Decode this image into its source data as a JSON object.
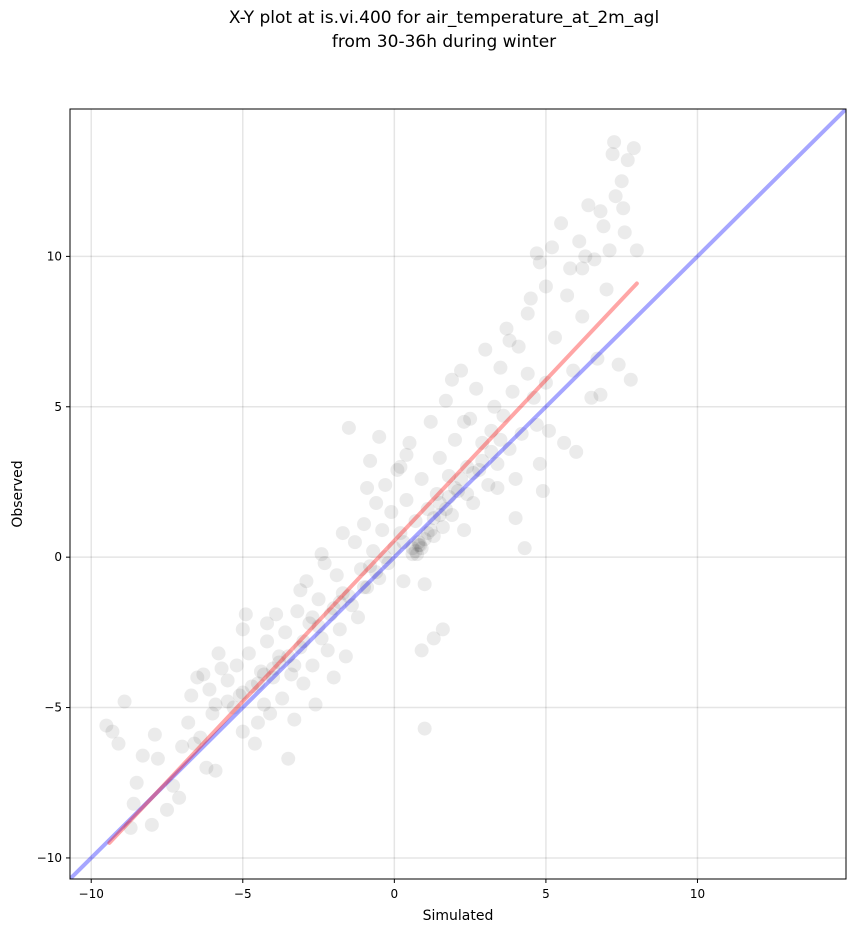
{
  "chart_data": {
    "type": "scatter",
    "title": "X-Y plot at is.vi.400 for air_temperature_at_2m_agl",
    "subtitle": "from 30-36h during winter",
    "xlabel": "Simulated",
    "ylabel": "Observed",
    "xlim": [
      -10.7,
      14.9
    ],
    "ylim": [
      -10.7,
      14.9
    ],
    "x_ticks": [
      -10,
      -5,
      0,
      5,
      10
    ],
    "y_ticks": [
      -10,
      -5,
      0,
      5,
      10
    ],
    "x_tick_labels": [
      "−10",
      "−5",
      "0",
      "5",
      "10"
    ],
    "y_tick_labels": [
      "−10",
      "−5",
      "0",
      "5",
      "10"
    ],
    "grid": true,
    "point_color": "#000000",
    "point_alpha": 0.08,
    "fit_line": {
      "color": "#ff0000",
      "alpha": 0.35,
      "x": [
        -9.4,
        8.0
      ],
      "y": [
        -9.5,
        9.1
      ]
    },
    "identity_line": {
      "color": "#0000ff",
      "alpha": 0.35,
      "x": [
        -10.7,
        14.9
      ],
      "y": [
        -10.7,
        14.9
      ]
    },
    "points": [
      {
        "x": -9.5,
        "y": -5.6
      },
      {
        "x": -9.3,
        "y": -5.8
      },
      {
        "x": -9.1,
        "y": -6.2
      },
      {
        "x": -8.9,
        "y": -4.8
      },
      {
        "x": -8.7,
        "y": -9.0
      },
      {
        "x": -8.6,
        "y": -8.2
      },
      {
        "x": -8.5,
        "y": -7.5
      },
      {
        "x": -8.3,
        "y": -6.6
      },
      {
        "x": -8.0,
        "y": -8.9
      },
      {
        "x": -7.9,
        "y": -5.9
      },
      {
        "x": -7.8,
        "y": -6.7
      },
      {
        "x": -7.5,
        "y": -8.4
      },
      {
        "x": -7.3,
        "y": -7.6
      },
      {
        "x": -7.0,
        "y": -6.3
      },
      {
        "x": -7.1,
        "y": -8.0
      },
      {
        "x": -6.8,
        "y": -5.5
      },
      {
        "x": -6.7,
        "y": -4.6
      },
      {
        "x": -6.6,
        "y": -6.2
      },
      {
        "x": -6.4,
        "y": -6.0
      },
      {
        "x": -6.2,
        "y": -7.0
      },
      {
        "x": -6.0,
        "y": -5.2
      },
      {
        "x": -5.9,
        "y": -7.1
      },
      {
        "x": -6.3,
        "y": -3.9
      },
      {
        "x": -6.1,
        "y": -4.4
      },
      {
        "x": -5.9,
        "y": -4.9
      },
      {
        "x": -5.7,
        "y": -3.7
      },
      {
        "x": -5.5,
        "y": -4.1
      },
      {
        "x": -5.3,
        "y": -5.0
      },
      {
        "x": -5.2,
        "y": -3.6
      },
      {
        "x": -5.1,
        "y": -4.6
      },
      {
        "x": -5.0,
        "y": -2.4
      },
      {
        "x": -5.0,
        "y": -5.8
      },
      {
        "x": -4.9,
        "y": -1.9
      },
      {
        "x": -4.8,
        "y": -3.2
      },
      {
        "x": -4.7,
        "y": -4.3
      },
      {
        "x": -4.6,
        "y": -6.2
      },
      {
        "x": -4.5,
        "y": -5.5
      },
      {
        "x": -4.4,
        "y": -3.8
      },
      {
        "x": -4.3,
        "y": -4.9
      },
      {
        "x": -4.2,
        "y": -2.8
      },
      {
        "x": -4.1,
        "y": -5.2
      },
      {
        "x": -4.0,
        "y": -4.0
      },
      {
        "x": -3.9,
        "y": -1.9
      },
      {
        "x": -3.8,
        "y": -3.3
      },
      {
        "x": -3.7,
        "y": -4.7
      },
      {
        "x": -3.6,
        "y": -2.5
      },
      {
        "x": -3.5,
        "y": -6.7
      },
      {
        "x": -3.4,
        "y": -3.9
      },
      {
        "x": -3.3,
        "y": -5.4
      },
      {
        "x": -3.2,
        "y": -1.8
      },
      {
        "x": -3.1,
        "y": -3.0
      },
      {
        "x": -3.0,
        "y": -4.2
      },
      {
        "x": -2.9,
        "y": -0.8
      },
      {
        "x": -2.8,
        "y": -2.2
      },
      {
        "x": -2.7,
        "y": -3.6
      },
      {
        "x": -2.6,
        "y": -4.9
      },
      {
        "x": -2.5,
        "y": -1.4
      },
      {
        "x": -2.4,
        "y": -2.7
      },
      {
        "x": -2.3,
        "y": -0.2
      },
      {
        "x": -2.2,
        "y": -3.1
      },
      {
        "x": -2.1,
        "y": -1.9
      },
      {
        "x": -2.0,
        "y": -4.0
      },
      {
        "x": -1.9,
        "y": -0.6
      },
      {
        "x": -1.8,
        "y": -2.4
      },
      {
        "x": -1.7,
        "y": -1.2
      },
      {
        "x": -1.6,
        "y": -3.3
      },
      {
        "x": -1.5,
        "y": 4.3
      },
      {
        "x": -1.4,
        "y": -1.6
      },
      {
        "x": -1.3,
        "y": 0.5
      },
      {
        "x": -1.2,
        "y": -2.0
      },
      {
        "x": -1.1,
        "y": -0.4
      },
      {
        "x": -1.0,
        "y": 1.1
      },
      {
        "x": -0.9,
        "y": -1.0
      },
      {
        "x": -0.8,
        "y": 3.2
      },
      {
        "x": -0.7,
        "y": 0.2
      },
      {
        "x": -0.6,
        "y": 1.8
      },
      {
        "x": -0.5,
        "y": -0.7
      },
      {
        "x": -0.4,
        "y": 0.9
      },
      {
        "x": -0.3,
        "y": 2.4
      },
      {
        "x": -0.2,
        "y": -0.2
      },
      {
        "x": -0.1,
        "y": 1.5
      },
      {
        "x": 0.0,
        "y": 0.3
      },
      {
        "x": 0.1,
        "y": 2.9
      },
      {
        "x": 0.2,
        "y": 0.8
      },
      {
        "x": 0.3,
        "y": -0.8
      },
      {
        "x": 0.4,
        "y": 1.9
      },
      {
        "x": 0.5,
        "y": 3.8
      },
      {
        "x": 0.6,
        "y": 0.1
      },
      {
        "x": 0.7,
        "y": 1.2
      },
      {
        "x": 0.8,
        "y": 0.4
      },
      {
        "x": 0.9,
        "y": 2.6
      },
      {
        "x": 1.0,
        "y": -0.9
      },
      {
        "x": 1.1,
        "y": 1.6
      },
      {
        "x": 1.2,
        "y": 4.5
      },
      {
        "x": 1.3,
        "y": 0.7
      },
      {
        "x": 1.4,
        "y": 2.1
      },
      {
        "x": 1.5,
        "y": 3.3
      },
      {
        "x": 1.6,
        "y": 1.0
      },
      {
        "x": 1.7,
        "y": 5.2
      },
      {
        "x": 1.8,
        "y": 2.7
      },
      {
        "x": 1.9,
        "y": 1.4
      },
      {
        "x": 2.0,
        "y": 3.9
      },
      {
        "x": 2.1,
        "y": 2.2
      },
      {
        "x": 2.2,
        "y": 6.2
      },
      {
        "x": 2.3,
        "y": 0.9
      },
      {
        "x": 2.4,
        "y": 3.0
      },
      {
        "x": 2.5,
        "y": 4.6
      },
      {
        "x": 2.6,
        "y": 1.8
      },
      {
        "x": 2.7,
        "y": 5.6
      },
      {
        "x": 2.8,
        "y": 2.9
      },
      {
        "x": 2.9,
        "y": 3.8
      },
      {
        "x": 3.0,
        "y": 6.9
      },
      {
        "x": 3.1,
        "y": 2.4
      },
      {
        "x": 3.2,
        "y": 4.2
      },
      {
        "x": 3.3,
        "y": 5.0
      },
      {
        "x": 3.4,
        "y": 3.1
      },
      {
        "x": 3.5,
        "y": 6.3
      },
      {
        "x": 3.6,
        "y": 4.7
      },
      {
        "x": 3.7,
        "y": 7.6
      },
      {
        "x": 3.8,
        "y": 3.6
      },
      {
        "x": 3.9,
        "y": 5.5
      },
      {
        "x": 4.0,
        "y": 2.6
      },
      {
        "x": 4.1,
        "y": 7.0
      },
      {
        "x": 4.2,
        "y": 4.1
      },
      {
        "x": 4.3,
        "y": 0.3
      },
      {
        "x": 4.4,
        "y": 6.1
      },
      {
        "x": 4.5,
        "y": 8.6
      },
      {
        "x": 4.6,
        "y": 5.3
      },
      {
        "x": 4.7,
        "y": 10.1
      },
      {
        "x": 4.8,
        "y": 3.1
      },
      {
        "x": 4.9,
        "y": 2.2
      },
      {
        "x": 5.0,
        "y": 9.0
      },
      {
        "x": 5.1,
        "y": 4.2
      },
      {
        "x": 5.3,
        "y": 7.3
      },
      {
        "x": 5.5,
        "y": 11.1
      },
      {
        "x": 5.6,
        "y": 3.8
      },
      {
        "x": 5.8,
        "y": 9.6
      },
      {
        "x": 5.9,
        "y": 6.2
      },
      {
        "x": 6.0,
        "y": 3.5
      },
      {
        "x": 6.1,
        "y": 10.5
      },
      {
        "x": 6.2,
        "y": 8.0
      },
      {
        "x": 6.4,
        "y": 11.7
      },
      {
        "x": 6.5,
        "y": 5.3
      },
      {
        "x": 6.6,
        "y": 9.9
      },
      {
        "x": 6.7,
        "y": 6.6
      },
      {
        "x": 6.8,
        "y": 5.4
      },
      {
        "x": 6.9,
        "y": 11.0
      },
      {
        "x": 7.0,
        "y": 8.9
      },
      {
        "x": 7.1,
        "y": 10.2
      },
      {
        "x": 7.2,
        "y": 13.4
      },
      {
        "x": 7.3,
        "y": 12.0
      },
      {
        "x": 7.4,
        "y": 6.4
      },
      {
        "x": 7.5,
        "y": 12.5
      },
      {
        "x": 7.6,
        "y": 10.8
      },
      {
        "x": 7.7,
        "y": 13.2
      },
      {
        "x": 7.8,
        "y": 5.9
      },
      {
        "x": 7.9,
        "y": 13.6
      },
      {
        "x": 8.0,
        "y": 10.2
      },
      {
        "x": 7.25,
        "y": 13.8
      },
      {
        "x": 7.55,
        "y": 11.6
      },
      {
        "x": 0.7,
        "y": 0.2
      },
      {
        "x": 0.8,
        "y": 0.5
      },
      {
        "x": 0.9,
        "y": 0.3
      },
      {
        "x": 0.75,
        "y": 0.1
      },
      {
        "x": 0.85,
        "y": 0.4
      },
      {
        "x": 1.0,
        "y": 0.6
      },
      {
        "x": 0.6,
        "y": 0.3
      },
      {
        "x": 1.1,
        "y": 0.8
      },
      {
        "x": 1.3,
        "y": 1.3
      },
      {
        "x": 1.5,
        "y": 1.8
      },
      {
        "x": 1.8,
        "y": 2.0
      },
      {
        "x": 2.0,
        "y": 2.3
      },
      {
        "x": 2.2,
        "y": 2.6
      },
      {
        "x": 1.2,
        "y": 0.9
      },
      {
        "x": 1.7,
        "y": 1.6
      },
      {
        "x": 2.4,
        "y": 2.1
      },
      {
        "x": -0.3,
        "y": 0.0
      },
      {
        "x": -0.6,
        "y": -0.5
      },
      {
        "x": -1.0,
        "y": -1.0
      },
      {
        "x": -1.5,
        "y": -1.3
      },
      {
        "x": -2.0,
        "y": -1.7
      },
      {
        "x": -2.5,
        "y": -2.3
      },
      {
        "x": -3.0,
        "y": -2.8
      },
      {
        "x": -3.5,
        "y": -3.3
      },
      {
        "x": -4.0,
        "y": -3.7
      },
      {
        "x": -4.5,
        "y": -4.2
      },
      {
        "x": -5.0,
        "y": -4.5
      },
      {
        "x": -5.5,
        "y": -4.8
      },
      {
        "x": -2.7,
        "y": -2.0
      },
      {
        "x": -3.3,
        "y": -3.6
      },
      {
        "x": -1.8,
        "y": -1.5
      },
      {
        "x": -0.8,
        "y": -0.3
      },
      {
        "x": 0.3,
        "y": 0.5
      },
      {
        "x": 1.5,
        "y": 1.4
      },
      {
        "x": 2.6,
        "y": 2.8
      },
      {
        "x": 3.2,
        "y": 3.5
      },
      {
        "x": 2.9,
        "y": 3.2
      },
      {
        "x": 3.5,
        "y": 3.9
      },
      {
        "x": -4.3,
        "y": -3.9
      },
      {
        "x": -3.8,
        "y": -3.5
      },
      {
        "x": 1.6,
        "y": -2.4
      },
      {
        "x": 1.3,
        "y": -2.7
      },
      {
        "x": 0.9,
        "y": -3.1
      },
      {
        "x": 1.0,
        "y": -5.7
      },
      {
        "x": 0.4,
        "y": 3.4
      },
      {
        "x": -0.5,
        "y": 4.0
      },
      {
        "x": 1.9,
        "y": 5.9
      },
      {
        "x": 2.3,
        "y": 4.5
      },
      {
        "x": 3.8,
        "y": 7.2
      },
      {
        "x": 4.4,
        "y": 8.1
      },
      {
        "x": 4.8,
        "y": 9.8
      },
      {
        "x": 5.2,
        "y": 10.3
      },
      {
        "x": 6.3,
        "y": 10.0
      },
      {
        "x": 6.8,
        "y": 11.5
      },
      {
        "x": 6.2,
        "y": 9.6
      },
      {
        "x": 5.7,
        "y": 8.7
      },
      {
        "x": 5.0,
        "y": 5.8
      },
      {
        "x": 4.7,
        "y": 4.4
      },
      {
        "x": 3.4,
        "y": 2.3
      },
      {
        "x": 4.0,
        "y": 1.3
      },
      {
        "x": -6.5,
        "y": -4.0
      },
      {
        "x": -5.8,
        "y": -3.2
      },
      {
        "x": -4.2,
        "y": -2.2
      },
      {
        "x": -3.1,
        "y": -1.1
      },
      {
        "x": -2.4,
        "y": 0.1
      },
      {
        "x": -1.7,
        "y": 0.8
      },
      {
        "x": -0.9,
        "y": 2.3
      },
      {
        "x": 0.2,
        "y": 3.0
      }
    ]
  }
}
